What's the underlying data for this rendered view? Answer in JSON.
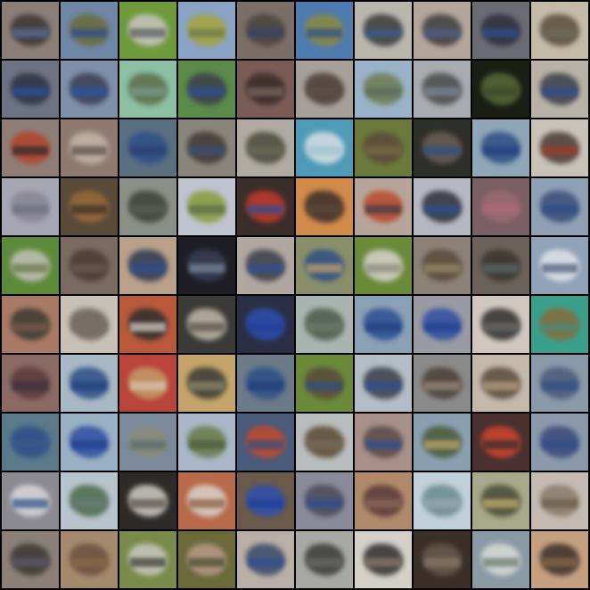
{
  "grid": {
    "rows": 10,
    "cols": 10,
    "tiles": [
      {
        "bg": "#8a7f78",
        "obj": "#3b3634",
        "stripe": "#5b6e9a"
      },
      {
        "bg": "#6f86a5",
        "obj": "#6a6b3a",
        "stripe": "#2d4c8f"
      },
      {
        "bg": "#6e9a3c",
        "obj": "#c9c6c0",
        "stripe": "#5a5a62"
      },
      {
        "bg": "#8aa3c4",
        "obj": "#a7a43a",
        "stripe": "#6b7a4a"
      },
      {
        "bg": "#7a6f66",
        "obj": "#4b4440",
        "stripe": "#36406a"
      },
      {
        "bg": "#4e7bb0",
        "obj": "#8c8a3e",
        "stripe": "#2e4f86"
      },
      {
        "bg": "#b8b6ad",
        "obj": "#3a3a38",
        "stripe": "#3c5a8c"
      },
      {
        "bg": "#b3a79c",
        "obj": "#3f3d3d",
        "stripe": "#4a5f8a"
      },
      {
        "bg": "#6b6b74",
        "obj": "#2d2f3c",
        "stripe": "#2e4f93"
      },
      {
        "bg": "#c2bba6",
        "obj": "#5a4d3c",
        "stripe": "#6b6b5a"
      },
      {
        "bg": "#6e7383",
        "obj": "#2e3142",
        "stripe": "#2a4fa0"
      },
      {
        "bg": "#7d90a7",
        "obj": "#3a3f55",
        "stripe": "#2c52a8"
      },
      {
        "bg": "#8cbfa3",
        "obj": "#5a6d4a",
        "stripe": "#7b9a8a"
      },
      {
        "bg": "#5b8a4a",
        "obj": "#3a3f4c",
        "stripe": "#2f4e9a"
      },
      {
        "bg": "#7a5c55",
        "obj": "#3a2a2a",
        "stripe": "#7a6a60"
      },
      {
        "bg": "#a6a09a",
        "obj": "#4a3b35",
        "stripe": "#5b4e47"
      },
      {
        "bg": "#9ab2c8",
        "obj": "#6b7d52",
        "stripe": "#5a6b5a"
      },
      {
        "bg": "#a8acb0",
        "obj": "#4a4a48",
        "stripe": "#7c8a9a"
      },
      {
        "bg": "#1a1e14",
        "obj": "#5a6a3a",
        "stripe": "#3b4a2a"
      },
      {
        "bg": "#b8b2a6",
        "obj": "#3b3e4a",
        "stripe": "#2e4f93"
      },
      {
        "bg": "#8f7d76",
        "obj": "#b2432a",
        "stripe": "#2a2a2a"
      },
      {
        "bg": "#8f7a70",
        "obj": "#c4b5a8",
        "stripe": "#5a4f47"
      },
      {
        "bg": "#5b6f80",
        "obj": "#2e4f8a",
        "stripe": "#2a3f70"
      },
      {
        "bg": "#8a857c",
        "obj": "#3f3b36",
        "stripe": "#3a4f7a"
      },
      {
        "bg": "#b0aba2",
        "obj": "#4a4a3a",
        "stripe": "#6a6a55"
      },
      {
        "bg": "#4f9ab7",
        "obj": "#d8e0e3",
        "stripe": "#9fc4d0"
      },
      {
        "bg": "#6b7a3a",
        "obj": "#5a4a3a",
        "stripe": "#7a6a4a"
      },
      {
        "bg": "#2e2e2a",
        "obj": "#6a5f55",
        "stripe": "#2e4f86"
      },
      {
        "bg": "#8fa6b8",
        "obj": "#2e4f86",
        "stripe": "#1f3f80"
      },
      {
        "bg": "#c8c2b8",
        "obj": "#4a3c35",
        "stripe": "#a33a2a"
      },
      {
        "bg": "#a7a7b3",
        "obj": "#8a8590",
        "stripe": "#6b6f80"
      },
      {
        "bg": "#5a4a3a",
        "obj": "#9a6a3a",
        "stripe": "#3a2e28"
      },
      {
        "bg": "#8a8f88",
        "obj": "#3b4038",
        "stripe": "#5a5f55"
      },
      {
        "bg": "#bfc3d0",
        "obj": "#8a9a3a",
        "stripe": "#5a6a4a"
      },
      {
        "bg": "#3a2e2a",
        "obj": "#c23a2a",
        "stripe": "#2e4f93"
      },
      {
        "bg": "#d08a4a",
        "obj": "#3a2e2a",
        "stripe": "#5a4a3a"
      },
      {
        "bg": "#b8a59a",
        "obj": "#b8492e",
        "stripe": "#3a3b48"
      },
      {
        "bg": "#b5b8c0",
        "obj": "#2e2f38",
        "stripe": "#2e4f93"
      },
      {
        "bg": "#7a5f66",
        "obj": "#9a6a70",
        "stripe": "#b06a7a"
      },
      {
        "bg": "#8fa0b4",
        "obj": "#3a4f7a",
        "stripe": "#2e4f86"
      },
      {
        "bg": "#5d8a3a",
        "obj": "#c4c0b8",
        "stripe": "#6a7a4a"
      },
      {
        "bg": "#7a6a60",
        "obj": "#4a3a32",
        "stripe": "#6a5a50"
      },
      {
        "bg": "#b8a08a",
        "obj": "#2e3a55",
        "stripe": "#2e4f93"
      },
      {
        "bg": "#1e1e24",
        "obj": "#3a3f55",
        "stripe": "#7a8aa0"
      },
      {
        "bg": "#b0a8a0",
        "obj": "#3a3f4a",
        "stripe": "#2e4f93"
      },
      {
        "bg": "#8a8f6a",
        "obj": "#2e4f86",
        "stripe": "#c4a46a"
      },
      {
        "bg": "#6a8a3a",
        "obj": "#d8d4cc",
        "stripe": "#8a8a80"
      },
      {
        "bg": "#8a8276",
        "obj": "#5a4a3a",
        "stripe": "#9a8a6a"
      },
      {
        "bg": "#6a625a",
        "obj": "#3a3530",
        "stripe": "#5a6a6a"
      },
      {
        "bg": "#8fa2b8",
        "obj": "#e0e4e8",
        "stripe": "#4a5a7a"
      },
      {
        "bg": "#a87a66",
        "obj": "#3a3a32",
        "stripe": "#7a5a4a"
      },
      {
        "bg": "#c6c0b6",
        "obj": "#6a6258",
        "stripe": "#7a7068"
      },
      {
        "bg": "#b85a3a",
        "obj": "#2e2e30",
        "stripe": "#d6d2ca"
      },
      {
        "bg": "#3a3a36",
        "obj": "#c0b8a8",
        "stripe": "#5a5248"
      },
      {
        "bg": "#2a2e44",
        "obj": "#2e4fb0",
        "stripe": "#1f3f9a"
      },
      {
        "bg": "#a8b4b0",
        "obj": "#4a5a4a",
        "stripe": "#6a7a6a"
      },
      {
        "bg": "#8aa0b4",
        "obj": "#2e4f93",
        "stripe": "#1f3f80"
      },
      {
        "bg": "#9a9aa4",
        "obj": "#2e4fa0",
        "stripe": "#1f3f90"
      },
      {
        "bg": "#d0c8c0",
        "obj": "#2e2e2e",
        "stripe": "#6a6a66"
      },
      {
        "bg": "#3aa08a",
        "obj": "#8a6a3a",
        "stripe": "#4a8a7a"
      },
      {
        "bg": "#8a6a62",
        "obj": "#5a3a3a",
        "stripe": "#3a3040"
      },
      {
        "bg": "#a8b8c4",
        "obj": "#2e4f86",
        "stripe": "#1f3f80"
      },
      {
        "bg": "#b8443a",
        "obj": "#c49a6a",
        "stripe": "#d8c8b0"
      },
      {
        "bg": "#c4a46a",
        "obj": "#3a3a36",
        "stripe": "#8a8a70"
      },
      {
        "bg": "#6a7a8a",
        "obj": "#2e4f86",
        "stripe": "#1f3f80"
      },
      {
        "bg": "#6a8a3a",
        "obj": "#5a4a3a",
        "stripe": "#2e4f86"
      },
      {
        "bg": "#b4bcc4",
        "obj": "#3a3f4a",
        "stripe": "#2e4f93"
      },
      {
        "bg": "#8a8a8a",
        "obj": "#4a4038",
        "stripe": "#9a8a7a"
      },
      {
        "bg": "#c4b8aa",
        "obj": "#5a4a3a",
        "stripe": "#b8a080"
      },
      {
        "bg": "#8a9aaa",
        "obj": "#4a5a7a",
        "stripe": "#2e4f86"
      },
      {
        "bg": "#5a7a8a",
        "obj": "#2e4f86",
        "stripe": "#3a5a8a"
      },
      {
        "bg": "#9ab0c4",
        "obj": "#2e4fa0",
        "stripe": "#1f3f90"
      },
      {
        "bg": "#7a8a9a",
        "obj": "#8a8a7a",
        "stripe": "#5a6a6a"
      },
      {
        "bg": "#a8b8c8",
        "obj": "#6a7a4a",
        "stripe": "#4a5a3a"
      },
      {
        "bg": "#4a5a7a",
        "obj": "#c44a2a",
        "stripe": "#2e4f86"
      },
      {
        "bg": "#b8bcbc",
        "obj": "#5a4a32",
        "stripe": "#7a6a5a"
      },
      {
        "bg": "#a89088",
        "obj": "#5a4a4a",
        "stripe": "#2e4f93"
      },
      {
        "bg": "#8aa0b0",
        "obj": "#4a5a3a",
        "stripe": "#c4a46a"
      },
      {
        "bg": "#4a3030",
        "obj": "#d0442e",
        "stripe": "#2e2e2e"
      },
      {
        "bg": "#8a9aac",
        "obj": "#3a4a7a",
        "stripe": "#2e4f86"
      },
      {
        "bg": "#8a8a90",
        "obj": "#d8d8dc",
        "stripe": "#2e4f86"
      },
      {
        "bg": "#b8c4cc",
        "obj": "#4a6a4a",
        "stripe": "#6a7a7a"
      },
      {
        "bg": "#2e2a28",
        "obj": "#d0ccc6",
        "stripe": "#5a5048"
      },
      {
        "bg": "#b86a4a",
        "obj": "#d8d4cc",
        "stripe": "#8a5a3a"
      },
      {
        "bg": "#6a5a4a",
        "obj": "#2e4fb0",
        "stripe": "#1f3f9a"
      },
      {
        "bg": "#8a8a9a",
        "obj": "#4a4a5a",
        "stripe": "#2e4f93"
      },
      {
        "bg": "#b08a6a",
        "obj": "#5a3a3a",
        "stripe": "#8a6a5a"
      },
      {
        "bg": "#c0d0d8",
        "obj": "#6a8a8a",
        "stripe": "#9aaab0"
      },
      {
        "bg": "#a8a88a",
        "obj": "#4a4a3a",
        "stripe": "#c4b06a"
      },
      {
        "bg": "#c4bcb0",
        "obj": "#8a7a6a",
        "stripe": "#6a5a4a"
      },
      {
        "bg": "#8a8078",
        "obj": "#3a3834",
        "stripe": "#5a5a6a"
      },
      {
        "bg": "#a48a6a",
        "obj": "#6a5040",
        "stripe": "#8a6a4a"
      },
      {
        "bg": "#7a8a4a",
        "obj": "#c8c8c0",
        "stripe": "#3a3a30"
      },
      {
        "bg": "#6a6a3a",
        "obj": "#b89a8a",
        "stripe": "#4a4a2e"
      },
      {
        "bg": "#b8b0a6",
        "obj": "#3a4a6a",
        "stripe": "#2e4f93"
      },
      {
        "bg": "#a8a8a4",
        "obj": "#3a3a38",
        "stripe": "#6a6a64"
      },
      {
        "bg": "#d4d0c8",
        "obj": "#2e2e2e",
        "stripe": "#8a7a6a"
      },
      {
        "bg": "#3a3028",
        "obj": "#6a5a4a",
        "stripe": "#8a7a6a"
      },
      {
        "bg": "#8a9aa4",
        "obj": "#d8dcd8",
        "stripe": "#6a7a6a"
      },
      {
        "bg": "#c4a080",
        "obj": "#3a3028",
        "stripe": "#8a6a4a"
      }
    ]
  }
}
